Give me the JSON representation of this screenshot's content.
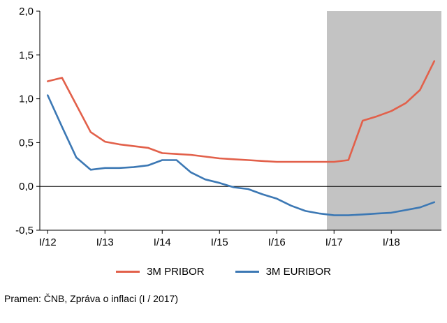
{
  "source": "Pramen: ČNB, Zpráva o inflaci (I / 2017)",
  "chart_data": {
    "type": "line",
    "title": "",
    "xlabel": "",
    "ylabel": "",
    "x_unit": "quarter (index 0 = I/12)",
    "x_tick_labels": [
      "I/12",
      "I/13",
      "I/14",
      "I/15",
      "I/16",
      "I/17",
      "I/18"
    ],
    "x_tick_positions": [
      0,
      4,
      8,
      12,
      16,
      20,
      24
    ],
    "y_tick_labels": [
      "2,0",
      "1,5",
      "1,0",
      "0,5",
      "0,0",
      "-0,5"
    ],
    "y_tick_values": [
      2.0,
      1.5,
      1.0,
      0.5,
      0.0,
      -0.5
    ],
    "ylim": [
      -0.5,
      2.0
    ],
    "xlim": [
      -0.55,
      27.5
    ],
    "grid": false,
    "zero_line": 0.0,
    "legend_position": "bottom-center",
    "forecast_region": {
      "start": 19.5,
      "end": 27.5,
      "color": "#c3c3c3"
    },
    "series": [
      {
        "name": "3M PRIBOR",
        "color": "#e2604a",
        "values": [
          1.2,
          1.24,
          0.93,
          0.62,
          0.51,
          0.48,
          0.46,
          0.44,
          0.38,
          0.37,
          0.36,
          0.34,
          0.32,
          0.31,
          0.3,
          0.29,
          0.28,
          0.28,
          0.28,
          0.28,
          0.28,
          0.3,
          0.75,
          0.8,
          0.86,
          0.95,
          1.1,
          1.43
        ]
      },
      {
        "name": "3M EURIBOR",
        "color": "#3c78b4",
        "values": [
          1.04,
          0.68,
          0.33,
          0.19,
          0.21,
          0.21,
          0.22,
          0.24,
          0.3,
          0.3,
          0.16,
          0.08,
          0.04,
          -0.01,
          -0.03,
          -0.09,
          -0.14,
          -0.22,
          -0.28,
          -0.31,
          -0.33,
          -0.33,
          -0.32,
          -0.31,
          -0.3,
          -0.27,
          -0.24,
          -0.18
        ]
      }
    ]
  }
}
